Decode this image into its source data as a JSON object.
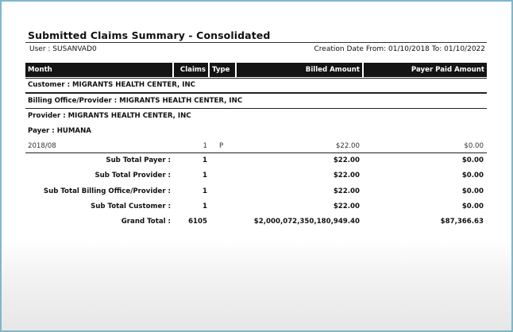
{
  "report": {
    "title": "Submitted Claims Summary - Consolidated",
    "user": "User : SUSANVAD0",
    "date_range": "Creation Date From: 01/10/2018  To: 01/10/2022"
  },
  "columns": {
    "month": "Month",
    "claims": "Claims",
    "type": "Type",
    "billed": "Billed Amount",
    "paid": "Payer Paid Amount"
  },
  "groups": {
    "customer": "Customer : MIGRANTS HEALTH CENTER, INC",
    "billing_office": "Billing Office/Provider : MIGRANTS HEALTH CENTER, INC",
    "provider": "Provider : MIGRANTS HEALTH CENTER, INC",
    "payer": "Payer : HUMANA"
  },
  "detail_row": {
    "month": "2018/08",
    "claims": "1",
    "type": "P",
    "billed": "$22.00",
    "paid": "$0.00"
  },
  "subtotals": [
    {
      "label": "Sub Total Payer :",
      "claims": "1",
      "billed": "$22.00",
      "paid": "$0.00"
    },
    {
      "label": "Sub Total Provider :",
      "claims": "1",
      "billed": "$22.00",
      "paid": "$0.00"
    },
    {
      "label": "Sub Total Billing Office/Provider :",
      "claims": "1",
      "billed": "$22.00",
      "paid": "$0.00"
    },
    {
      "label": "Sub Total Customer :",
      "claims": "1",
      "billed": "$22.00",
      "paid": "$0.00"
    },
    {
      "label": "Grand Total :",
      "claims": "6105",
      "billed": "$2,000,072,350,180,949.40",
      "paid": "$87,366.63"
    }
  ]
}
